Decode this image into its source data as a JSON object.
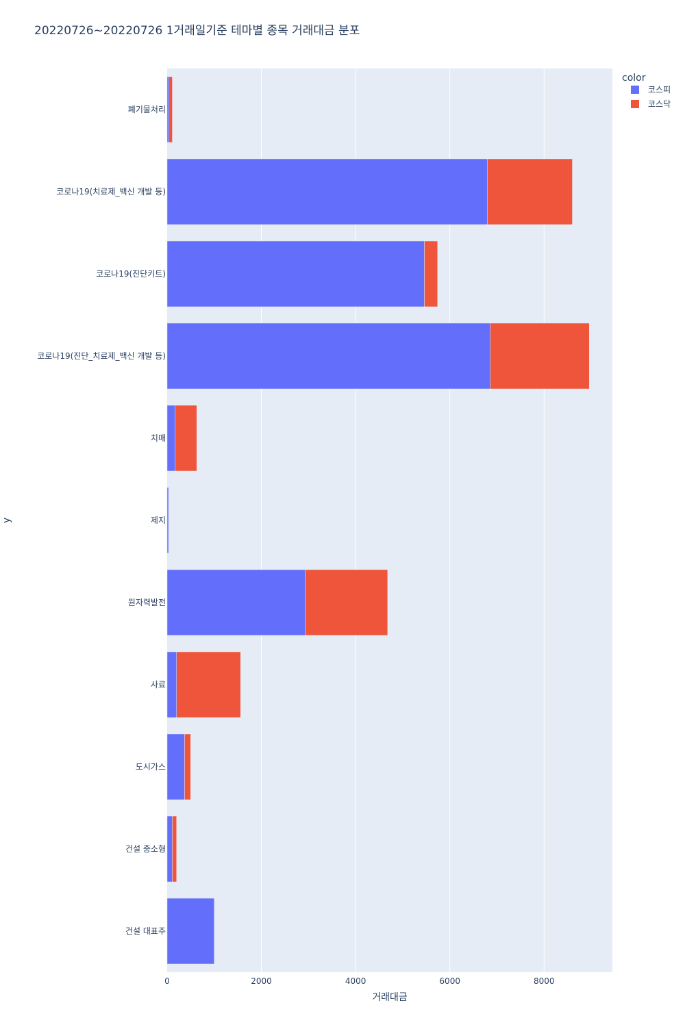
{
  "chart_data": {
    "type": "bar",
    "orientation": "horizontal",
    "barmode": "stack",
    "title": "20220726~20220726 1거래일기준 테마별 종목 거래대금 분포",
    "xlabel": "거래대금",
    "ylabel": "y",
    "xlim": [
      0,
      9450
    ],
    "xticks": [
      0,
      2000,
      4000,
      6000,
      8000
    ],
    "grid": true,
    "legend_title": "color",
    "legend_position": "top-right",
    "categories": [
      "폐기물처리",
      "코로나19(치료제_백신 개발 등)",
      "코로나19(진단키트)",
      "코로나19(진단_치료제_백신 개발 등)",
      "치매",
      "제지",
      "원자력발전",
      "사료",
      "도시가스",
      "건설 중소형",
      "건설 대표주"
    ],
    "series": [
      {
        "name": "코스피",
        "color": "#636efa",
        "values": [
          40,
          6800,
          5460,
          6860,
          170,
          30,
          2930,
          200,
          370,
          110,
          1000
        ]
      },
      {
        "name": "코스닥",
        "color": "#ef553b",
        "values": [
          70,
          1800,
          280,
          2100,
          460,
          0,
          1750,
          1360,
          130,
          90,
          0
        ]
      }
    ]
  }
}
